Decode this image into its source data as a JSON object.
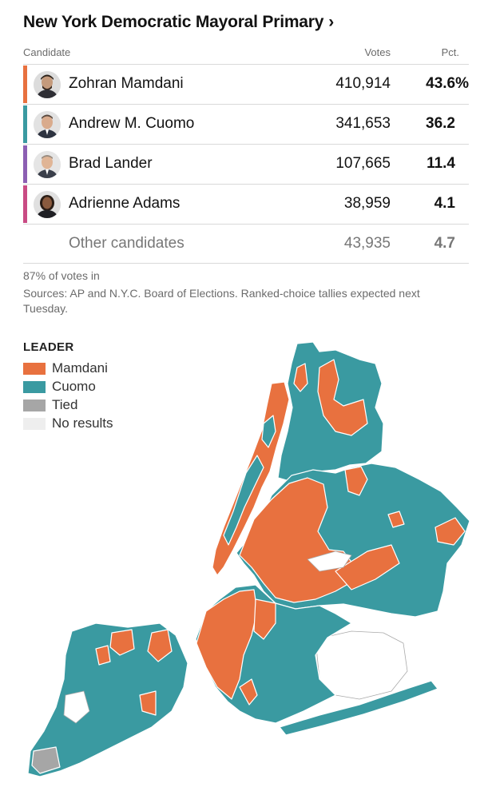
{
  "header": {
    "title": "New York Democratic Mayoral Primary",
    "chevron": "›"
  },
  "table": {
    "columns": {
      "candidate": "Candidate",
      "votes": "Votes",
      "pct": "Pct."
    },
    "rows": [
      {
        "name": "Zohran Mamdani",
        "votes": "410,914",
        "pct": "43.6%",
        "color": "#e8713f"
      },
      {
        "name": "Andrew M. Cuomo",
        "votes": "341,653",
        "pct": "36.2",
        "color": "#3a9aa1"
      },
      {
        "name": "Brad Lander",
        "votes": "107,665",
        "pct": "11.4",
        "color": "#8c5fb3"
      },
      {
        "name": "Adrienne Adams",
        "votes": "38,959",
        "pct": "4.1",
        "color": "#c94b84"
      }
    ],
    "other": {
      "name": "Other candidates",
      "votes": "43,935",
      "pct": "4.7"
    }
  },
  "notes": {
    "reporting": "87% of votes in",
    "sources": "Sources: AP and N.Y.C. Board of Elections. Ranked-choice tallies expected next Tuesday."
  },
  "legend": {
    "title": "LEADER",
    "items": [
      {
        "label": "Mamdani",
        "color": "#e8713f"
      },
      {
        "label": "Cuomo",
        "color": "#3a9aa1"
      },
      {
        "label": "Tied",
        "color": "#a6a6a6"
      },
      {
        "label": "No results",
        "color": "#eeeeee"
      }
    ]
  },
  "map": {
    "mamdani_color": "#e8713f",
    "cuomo_color": "#3a9aa1",
    "tied_color": "#a6a6a6",
    "border_color": "#ffffff"
  }
}
